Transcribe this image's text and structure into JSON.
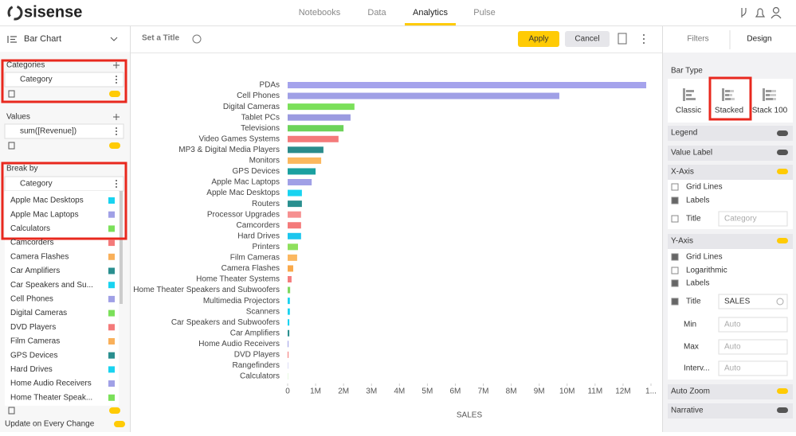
{
  "header": {
    "logo": "sisense",
    "nav": [
      "Notebooks",
      "Data",
      "Analytics",
      "Pulse"
    ]
  },
  "left_panel": {
    "widget_type": "Bar Chart",
    "categories": {
      "title": "Categories",
      "field": "Category"
    },
    "values": {
      "title": "Values",
      "field": "sum([Revenue])"
    },
    "break_by": {
      "title": "Break by",
      "field": "Category",
      "items": [
        {
          "label": "Apple Mac Desktops",
          "color": "#19d3f0"
        },
        {
          "label": "Apple Mac Laptops",
          "color": "#a0a0e6"
        },
        {
          "label": "Calculators",
          "color": "#7be05a"
        },
        {
          "label": "Camcorders",
          "color": "#f47a7a"
        },
        {
          "label": "Camera Flashes",
          "color": "#f9b05a"
        },
        {
          "label": "Car Amplifiers",
          "color": "#2a8f8f"
        },
        {
          "label": "Car Speakers and Su...",
          "color": "#19d3f0"
        },
        {
          "label": "Cell Phones",
          "color": "#a0a0e6"
        },
        {
          "label": "Digital Cameras",
          "color": "#7be05a"
        },
        {
          "label": "DVD Players",
          "color": "#f47a7a"
        },
        {
          "label": "Film Cameras",
          "color": "#f9b05a"
        },
        {
          "label": "GPS Devices",
          "color": "#2a8f8f"
        },
        {
          "label": "Hard Drives",
          "color": "#19d3f0"
        },
        {
          "label": "Home Audio Receivers",
          "color": "#a0a0e6"
        },
        {
          "label": "Home Theater Speak...",
          "color": "#7be05a"
        }
      ]
    },
    "footer": "Update on Every Change"
  },
  "toolbar": {
    "title_placeholder": "Set a Title",
    "apply": "Apply",
    "cancel": "Cancel"
  },
  "chart_data": {
    "type": "bar",
    "orientation": "horizontal",
    "stacked": true,
    "grid": false,
    "categories": [
      "PDAs",
      "Cell Phones",
      "Digital Cameras",
      "Tablet PCs",
      "Televisions",
      "Video Games Systems",
      "MP3 & Digital Media Players",
      "Monitors",
      "GPS Devices",
      "Apple Mac Laptops",
      "Apple Mac Desktops",
      "Routers",
      "Processor Upgrades",
      "Camcorders",
      "Hard Drives",
      "Printers",
      "Film Cameras",
      "Camera Flashes",
      "Home Theater Systems",
      "Home Theater Speakers and Subwoofers",
      "Multimedia Projectors",
      "Scanners",
      "Car Speakers and Subwoofers",
      "Car Amplifiers",
      "Home Audio Receivers",
      "DVD Players",
      "Rangefinders",
      "Calculators"
    ],
    "values": [
      12830000,
      9720000,
      2390000,
      2250000,
      2000000,
      1820000,
      1280000,
      1200000,
      1000000,
      860000,
      510000,
      510000,
      480000,
      480000,
      480000,
      370000,
      340000,
      200000,
      140000,
      90000,
      80000,
      80000,
      60000,
      60000,
      30000,
      30000,
      10000,
      5000
    ],
    "colors": [
      "#a5a3ec",
      "#a0a0e6",
      "#7be05a",
      "#9b9be0",
      "#6dd35a",
      "#f47a7a",
      "#2a8b8b",
      "#fbb85e",
      "#1aa0a0",
      "#a0a0e6",
      "#19d3f0",
      "#2a8f8f",
      "#f69090",
      "#f47a7a",
      "#1cc6ee",
      "#8ee05c",
      "#fbb860",
      "#f9a94b",
      "#f57d7d",
      "#80d860",
      "#19d3f0",
      "#19d3f0",
      "#19d3f0",
      "#2a8f8f",
      "#a0a0e6",
      "#f47a7a",
      "#a0a0e6",
      "#7be05a"
    ],
    "xlim": [
      0,
      13000000
    ],
    "xticks": [
      0,
      {
        "value": 1000000,
        "label": "1M"
      },
      {
        "value": 2000000,
        "label": "2M"
      },
      {
        "value": 3000000,
        "label": "3M"
      },
      {
        "value": 4000000,
        "label": "4M"
      },
      {
        "value": 5000000,
        "label": "5M"
      },
      {
        "value": 6000000,
        "label": "6M"
      },
      {
        "value": 7000000,
        "label": "7M"
      },
      {
        "value": 8000000,
        "label": "8M"
      },
      {
        "value": 9000000,
        "label": "9M"
      },
      {
        "value": 10000000,
        "label": "10M"
      },
      {
        "value": 11000000,
        "label": "11M"
      },
      {
        "value": 12000000,
        "label": "12M"
      },
      {
        "value": 13000000,
        "label": "1..."
      }
    ],
    "x_label": "SALES"
  },
  "right_panel": {
    "tabs": [
      "Filters",
      "Design"
    ],
    "bar_type": {
      "title": "Bar Type",
      "options": [
        "Classic",
        "Stacked",
        "Stack 100"
      ]
    },
    "legend": "Legend",
    "value_label": "Value Label",
    "x_axis": {
      "title": "X-Axis",
      "grid_lines": "Grid Lines",
      "labels": "Labels",
      "title_label": "Title",
      "title_placeholder": "Category"
    },
    "y_axis": {
      "title": "Y-Axis",
      "grid_lines": "Grid Lines",
      "logarithmic": "Logarithmic",
      "labels": "Labels",
      "title_label": "Title",
      "title_value": "SALES",
      "min": "Min",
      "min_value": "Auto",
      "max": "Max",
      "max_value": "Auto",
      "interval": "Interv...",
      "interval_value": "Auto"
    },
    "auto_zoom": "Auto Zoom",
    "narrative": "Narrative"
  }
}
